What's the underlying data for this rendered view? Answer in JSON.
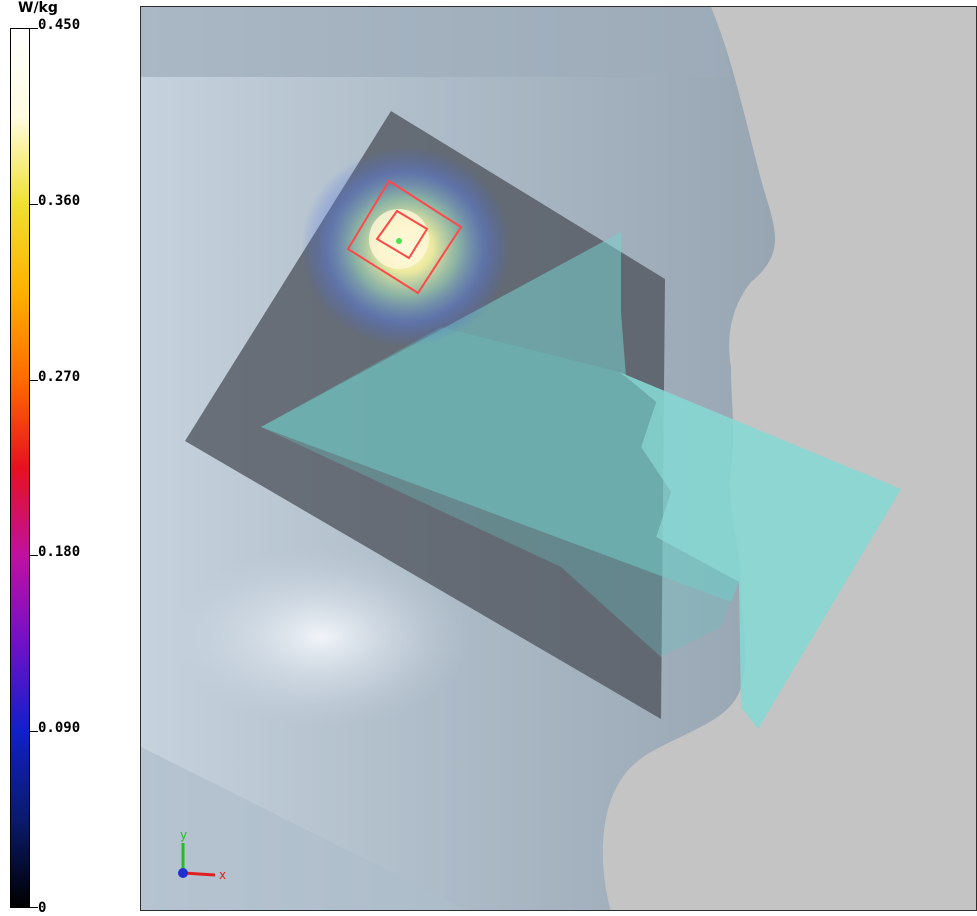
{
  "colorbar": {
    "unit": "W/kg",
    "ticks": [
      {
        "label": "0.450",
        "fraction": 1.0
      },
      {
        "label": "0.360",
        "fraction": 0.8
      },
      {
        "label": "0.270",
        "fraction": 0.6
      },
      {
        "label": "0.180",
        "fraction": 0.4
      },
      {
        "label": "0.090",
        "fraction": 0.2
      },
      {
        "label": "0",
        "fraction": 0.0
      }
    ],
    "gradient_colors": [
      "#000000",
      "#0a1a6e",
      "#1020c8",
      "#7010c8",
      "#c010a0",
      "#e81020",
      "#ff6a00",
      "#ffb000",
      "#f0e030",
      "#fffce0",
      "#ffffff"
    ]
  },
  "axes": {
    "x_label": "x",
    "y_label": "y",
    "z_label": "z",
    "x_color": "#e02020",
    "y_color": "#20c020",
    "z_color": "#2030d0"
  },
  "scene": {
    "background_color": "#c4c4c4",
    "head_color": "#a8b8c8",
    "phantom_frame_color": "#5a5f66",
    "phone_color": "#7fd6d2",
    "hotspot_marker_color": "#ff4040"
  }
}
